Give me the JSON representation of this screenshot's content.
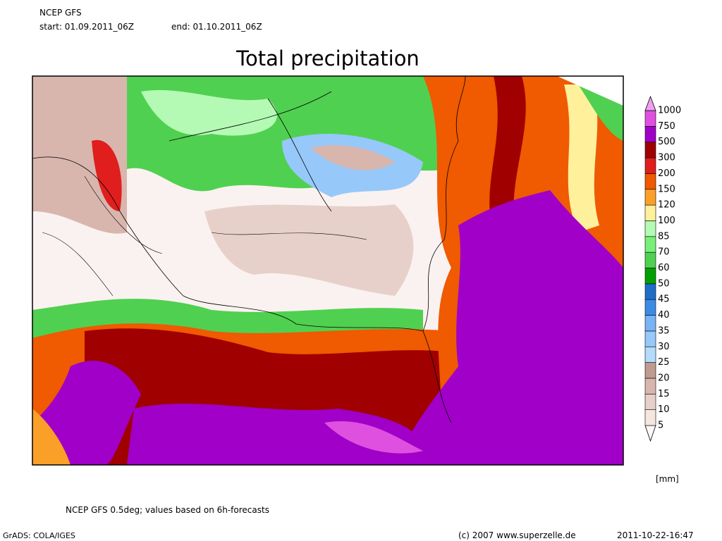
{
  "header": {
    "source": "NCEP GFS",
    "start": "start: 01.09.2011_06Z",
    "end": "end: 01.10.2011_06Z"
  },
  "title": "Total precipitation",
  "colorbar": {
    "levels": [
      5,
      10,
      15,
      20,
      25,
      30,
      35,
      40,
      45,
      50,
      60,
      70,
      85,
      100,
      120,
      150,
      200,
      300,
      500,
      750,
      1000
    ],
    "colors": [
      "#fff8f8",
      "#f5e6e0",
      "#e8d0ca",
      "#d8b6ae",
      "#c09a90",
      "#b4dcfa",
      "#96c8fa",
      "#78b4f5",
      "#3c8ce6",
      "#1e6ec8",
      "#00a000",
      "#50d050",
      "#78f078",
      "#b4fab4",
      "#fff09c",
      "#faa028",
      "#f05a00",
      "#e01e1e",
      "#a00000",
      "#a000c8",
      "#e050e0",
      "#f0a0f0"
    ],
    "unit": "[mm]"
  },
  "footer": {
    "note": "NCEP GFS 0.5deg; values based on 6h-forecasts",
    "grads": "GrADS: COLA/IGES",
    "copyright": "(c) 2007 www.superzelle.de",
    "timestamp": "2011-10-22-16:47"
  }
}
